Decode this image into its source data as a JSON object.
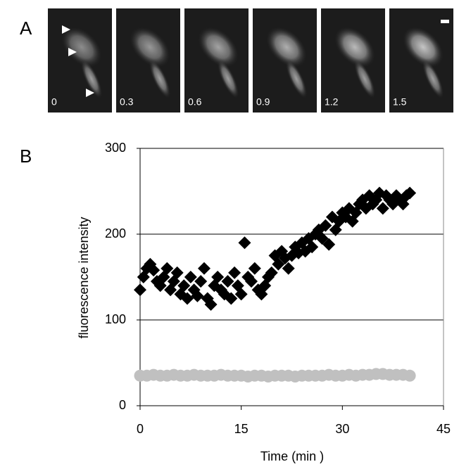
{
  "panel_labels": [
    "A",
    "B"
  ],
  "frames": [
    "0",
    "0.3",
    "0.6",
    "0.9",
    "1.2",
    "1.5"
  ],
  "chart_data": {
    "type": "scatter",
    "x_label": "Time (min )",
    "y_label": "fluorescence intensity",
    "xlim": [
      0,
      45
    ],
    "xticks": [
      0,
      15,
      30,
      45
    ],
    "ylim": [
      0,
      300
    ],
    "yticks": [
      0,
      100,
      200,
      300
    ],
    "grid": true,
    "series": [
      {
        "color": "#000000",
        "marker": "diamond",
        "x": [
          0,
          0.5,
          1,
          1.5,
          2,
          2.5,
          3,
          3.5,
          4,
          4.5,
          5,
          5.5,
          6,
          6.5,
          7,
          7.5,
          8,
          8.5,
          9,
          9.5,
          10,
          10.5,
          11,
          11.5,
          12,
          12.5,
          13,
          13.5,
          14,
          14.5,
          15,
          15.5,
          16,
          16.5,
          17,
          17.5,
          18,
          18.5,
          19,
          19.5,
          20,
          20.5,
          21,
          21.5,
          22,
          22.5,
          23,
          23.5,
          24,
          24.5,
          25,
          25.5,
          26,
          26.5,
          27,
          27.5,
          28,
          28.5,
          29,
          29.5,
          30,
          30.5,
          31,
          31.5,
          32,
          32.5,
          33,
          33.5,
          34,
          34.5,
          35,
          35.5,
          36,
          36.5,
          37,
          37.5,
          38,
          38.5,
          39,
          39.5,
          40
        ],
        "values": [
          135,
          150,
          160,
          165,
          158,
          145,
          140,
          150,
          160,
          135,
          145,
          155,
          130,
          140,
          125,
          150,
          135,
          128,
          145,
          160,
          125,
          118,
          140,
          150,
          135,
          130,
          145,
          125,
          155,
          140,
          130,
          190,
          150,
          145,
          160,
          135,
          130,
          140,
          150,
          155,
          175,
          165,
          180,
          172,
          160,
          175,
          185,
          178,
          190,
          180,
          195,
          185,
          200,
          205,
          195,
          210,
          188,
          220,
          205,
          215,
          225,
          220,
          230,
          215,
          225,
          235,
          240,
          230,
          245,
          235,
          240,
          248,
          230,
          245,
          240,
          235,
          245,
          240,
          235,
          245,
          248
        ]
      },
      {
        "color": "#c0c0c0",
        "marker": "circle",
        "x": [
          0,
          1,
          2,
          3,
          4,
          5,
          6,
          7,
          8,
          9,
          10,
          11,
          12,
          13,
          14,
          15,
          16,
          17,
          18,
          19,
          20,
          21,
          22,
          23,
          24,
          25,
          26,
          27,
          28,
          29,
          30,
          31,
          32,
          33,
          34,
          35,
          36,
          37,
          38,
          39,
          40
        ],
        "values": [
          35,
          35,
          36,
          35,
          35,
          36,
          35,
          35,
          36,
          35,
          35,
          35,
          36,
          35,
          35,
          35,
          34,
          35,
          35,
          34,
          35,
          35,
          35,
          34,
          35,
          35,
          35,
          35,
          36,
          35,
          35,
          36,
          35,
          36,
          36,
          37,
          37,
          36,
          36,
          36,
          35
        ]
      }
    ]
  }
}
